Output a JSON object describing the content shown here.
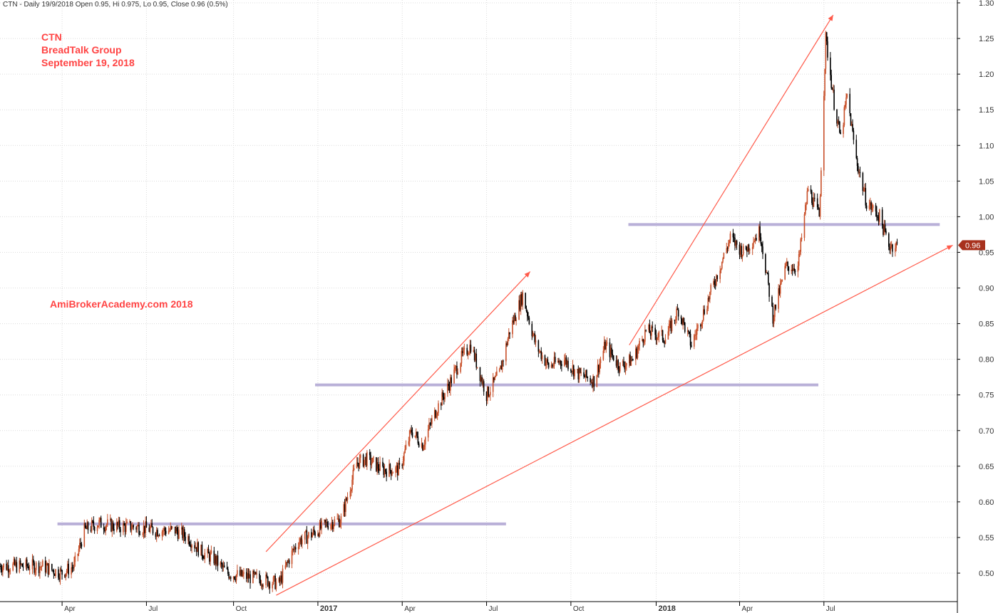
{
  "header": {
    "text": "CTN - Daily 19/9/2018 Open 0.95, Hi 0.975, Lo 0.95, Close 0.96 (0.5%)"
  },
  "annotations": {
    "ticker": "CTN",
    "company": "BreadTalk Group",
    "date": "September 19, 2018",
    "watermark": "AmiBrokerAcademy.com  2018"
  },
  "colors": {
    "annotation": "#ff4444",
    "trendline": "#ff5a4a",
    "support": "#b9b0d8",
    "grid": "#dcdcdc",
    "up_candle": "#c8502a",
    "down_candle": "#000000",
    "badge": "#a8321e"
  },
  "chart_data": {
    "type": "line",
    "ylim": [
      0.45,
      1.3
    ],
    "ytick_labels": [
      "0.50",
      "0.55",
      "0.60",
      "0.65",
      "0.70",
      "0.75",
      "0.80",
      "0.85",
      "0.90",
      "0.95",
      "1.00",
      "1.05",
      "1.10",
      "1.15",
      "1.20",
      "1.25",
      "1.30"
    ],
    "x_tick_labels": [
      {
        "label": "Apr",
        "bold": false
      },
      {
        "label": "Jul",
        "bold": false
      },
      {
        "label": "Oct",
        "bold": false
      },
      {
        "label": "2017",
        "bold": true
      },
      {
        "label": "Apr",
        "bold": false
      },
      {
        "label": "Jul",
        "bold": false
      },
      {
        "label": "Oct",
        "bold": false
      },
      {
        "label": "2018",
        "bold": true
      },
      {
        "label": "Apr",
        "bold": false
      },
      {
        "label": "Jul",
        "bold": false
      }
    ],
    "x_tick_dates": [
      "2016-04-01",
      "2016-07-01",
      "2016-10-03",
      "2017-01-02",
      "2017-04-03",
      "2017-07-03",
      "2017-10-02",
      "2018-01-02",
      "2018-04-02",
      "2018-07-02"
    ],
    "x_range": [
      "2016-01-25",
      "2018-11-23"
    ],
    "price_series": {
      "name": "CTN",
      "points": [
        [
          "2016-01-25",
          0.51
        ],
        [
          "2016-02-15",
          0.51
        ],
        [
          "2016-03-10",
          0.51
        ],
        [
          "2016-03-31",
          0.5
        ],
        [
          "2016-04-14",
          0.51
        ],
        [
          "2016-04-25",
          0.56
        ],
        [
          "2016-05-10",
          0.57
        ],
        [
          "2016-06-01",
          0.565
        ],
        [
          "2016-06-20",
          0.565
        ],
        [
          "2016-07-11",
          0.56
        ],
        [
          "2016-08-01",
          0.56
        ],
        [
          "2016-08-15",
          0.55
        ],
        [
          "2016-08-29",
          0.53
        ],
        [
          "2016-09-12",
          0.52
        ],
        [
          "2016-09-26",
          0.5
        ],
        [
          "2016-10-17",
          0.495
        ],
        [
          "2016-11-07",
          0.49
        ],
        [
          "2016-11-21",
          0.485
        ],
        [
          "2016-12-02",
          0.52
        ],
        [
          "2016-12-12",
          0.545
        ],
        [
          "2016-12-27",
          0.555
        ],
        [
          "2017-01-13",
          0.57
        ],
        [
          "2017-01-27",
          0.575
        ],
        [
          "2017-02-13",
          0.655
        ],
        [
          "2017-02-24",
          0.66
        ],
        [
          "2017-03-13",
          0.645
        ],
        [
          "2017-03-31",
          0.645
        ],
        [
          "2017-04-13",
          0.7
        ],
        [
          "2017-04-25",
          0.68
        ],
        [
          "2017-05-10",
          0.73
        ],
        [
          "2017-05-22",
          0.76
        ],
        [
          "2017-06-05",
          0.8
        ],
        [
          "2017-06-16",
          0.82
        ],
        [
          "2017-07-03",
          0.75
        ],
        [
          "2017-07-17",
          0.78
        ],
        [
          "2017-07-28",
          0.84
        ],
        [
          "2017-08-11",
          0.89
        ],
        [
          "2017-08-25",
          0.82
        ],
        [
          "2017-09-08",
          0.79
        ],
        [
          "2017-09-25",
          0.8
        ],
        [
          "2017-10-09",
          0.78
        ],
        [
          "2017-10-27",
          0.77
        ],
        [
          "2017-11-08",
          0.82
        ],
        [
          "2017-11-24",
          0.79
        ],
        [
          "2017-12-08",
          0.8
        ],
        [
          "2017-12-22",
          0.84
        ],
        [
          "2018-01-12",
          0.83
        ],
        [
          "2018-01-26",
          0.87
        ],
        [
          "2018-02-09",
          0.82
        ],
        [
          "2018-02-26",
          0.88
        ],
        [
          "2018-03-09",
          0.92
        ],
        [
          "2018-03-23",
          0.97
        ],
        [
          "2018-04-06",
          0.95
        ],
        [
          "2018-04-24",
          0.98
        ],
        [
          "2018-05-08",
          0.86
        ],
        [
          "2018-05-22",
          0.93
        ],
        [
          "2018-06-04",
          0.93
        ],
        [
          "2018-06-15",
          1.04
        ],
        [
          "2018-06-27",
          1.0
        ],
        [
          "2018-07-04",
          1.25
        ],
        [
          "2018-07-13",
          1.16
        ],
        [
          "2018-07-20",
          1.11
        ],
        [
          "2018-07-27",
          1.17
        ],
        [
          "2018-08-06",
          1.08
        ],
        [
          "2018-08-17",
          1.02
        ],
        [
          "2018-08-31",
          1.0
        ],
        [
          "2018-09-10",
          0.96
        ],
        [
          "2018-09-19",
          0.96
        ]
      ]
    },
    "last_close_label": "0.96",
    "last_close": 0.96,
    "support_lines": [
      {
        "x0": "2016-03-27",
        "x1": "2017-07-24",
        "y": 0.569
      },
      {
        "x0": "2016-12-30",
        "x1": "2018-06-26",
        "y": 0.764
      },
      {
        "x0": "2017-12-03",
        "x1": "2018-11-04",
        "y": 0.989
      }
    ],
    "trend_arrows": [
      {
        "x0": "2016-11-07",
        "y0": 0.53,
        "x1": "2017-08-19",
        "y1": 0.923
      },
      {
        "x0": "2017-12-04",
        "y0": 0.82,
        "x1": "2018-07-12",
        "y1": 1.283
      },
      {
        "x0": "2016-11-18",
        "y0": 0.469,
        "x1": "2018-11-18",
        "y1": 0.96
      }
    ]
  }
}
